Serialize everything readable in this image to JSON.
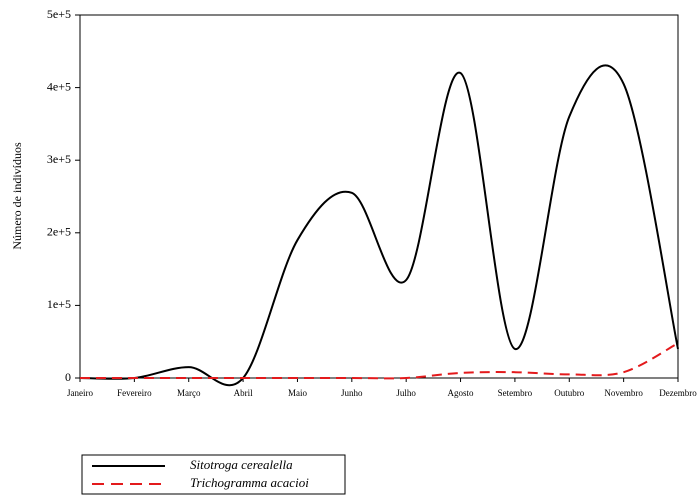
{
  "chart_data": {
    "type": "line",
    "ylabel": "Número de indivíduos",
    "categories": [
      "Janeiro",
      "Fevereiro",
      "Março",
      "Abril",
      "Maio",
      "Junho",
      "Julho",
      "Agosto",
      "Setembro",
      "Outubro",
      "Novembro",
      "Dezembro"
    ],
    "series": [
      {
        "name": "Sitotroga cerealella",
        "color": "#000000",
        "dash": "solid",
        "values": [
          0,
          0,
          15000,
          0,
          190000,
          255000,
          135000,
          420000,
          40000,
          360000,
          405000,
          40000
        ]
      },
      {
        "name": "Trichogramma acacioi",
        "color": "#e31a1c",
        "dash": "dashed",
        "values": [
          0,
          0,
          0,
          0,
          0,
          0,
          0,
          7000,
          8000,
          5000,
          8000,
          48000
        ]
      }
    ],
    "ylim": [
      0,
      500000
    ],
    "yticks": [
      0,
      {
        "value": 100000,
        "label": "1e+5"
      },
      {
        "value": 200000,
        "label": "2e+5"
      },
      {
        "value": 300000,
        "label": "3e+5"
      },
      {
        "value": 400000,
        "label": "4e+5"
      },
      {
        "value": 500000,
        "label": "5e+5"
      }
    ]
  }
}
